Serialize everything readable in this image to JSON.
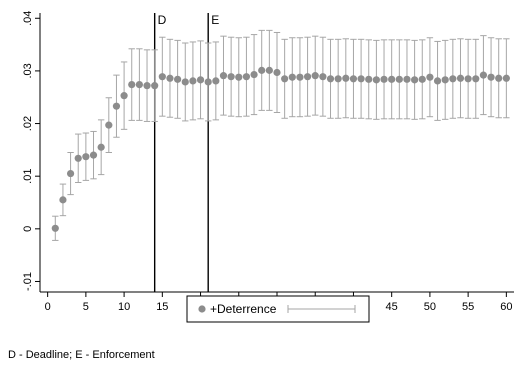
{
  "chart_data": {
    "type": "scatter",
    "x": [
      1,
      2,
      3,
      4,
      5,
      6,
      7,
      8,
      9,
      10,
      11,
      12,
      13,
      14,
      15,
      16,
      17,
      18,
      19,
      20,
      21,
      22,
      23,
      24,
      25,
      26,
      27,
      28,
      29,
      30,
      31,
      32,
      33,
      34,
      35,
      36,
      37,
      38,
      39,
      40,
      41,
      42,
      43,
      44,
      45,
      46,
      47,
      48,
      49,
      50,
      51,
      52,
      53,
      54,
      55,
      56,
      57,
      58,
      59,
      60
    ],
    "series": [
      {
        "name": "+Deterrence",
        "values": [
          0.0001,
          0.0055,
          0.0105,
          0.0134,
          0.0137,
          0.014,
          0.0155,
          0.0197,
          0.0233,
          0.0253,
          0.0274,
          0.0274,
          0.0272,
          0.0272,
          0.0289,
          0.0286,
          0.0284,
          0.0279,
          0.0281,
          0.0283,
          0.0279,
          0.0281,
          0.0291,
          0.0289,
          0.0288,
          0.0289,
          0.0293,
          0.0301,
          0.0301,
          0.0297,
          0.0285,
          0.0288,
          0.0288,
          0.0289,
          0.0291,
          0.0289,
          0.0285,
          0.0285,
          0.0286,
          0.0285,
          0.0285,
          0.0284,
          0.0283,
          0.0284,
          0.0284,
          0.0284,
          0.0284,
          0.0283,
          0.0284,
          0.0288,
          0.0281,
          0.0283,
          0.0285,
          0.0286,
          0.0285,
          0.0285,
          0.0292,
          0.0288,
          0.0286,
          0.0286
        ],
        "lower": [
          -0.0022,
          0.0025,
          0.0065,
          0.0088,
          0.0092,
          0.0095,
          0.0103,
          0.0145,
          0.0174,
          0.0189,
          0.0206,
          0.0206,
          0.0204,
          0.0204,
          0.0214,
          0.0212,
          0.021,
          0.0205,
          0.0207,
          0.0209,
          0.0205,
          0.0207,
          0.0216,
          0.0214,
          0.0213,
          0.0214,
          0.0217,
          0.0225,
          0.0225,
          0.0221,
          0.021,
          0.0213,
          0.0213,
          0.0214,
          0.0216,
          0.0214,
          0.021,
          0.021,
          0.0211,
          0.021,
          0.021,
          0.0209,
          0.0208,
          0.0209,
          0.0209,
          0.0209,
          0.0209,
          0.0208,
          0.0209,
          0.0213,
          0.0206,
          0.0208,
          0.021,
          0.0211,
          0.021,
          0.021,
          0.0217,
          0.0213,
          0.0211,
          0.0211
        ],
        "upper": [
          0.0024,
          0.0085,
          0.0145,
          0.018,
          0.0182,
          0.0185,
          0.0207,
          0.0249,
          0.0292,
          0.0317,
          0.0342,
          0.0342,
          0.034,
          0.034,
          0.0364,
          0.036,
          0.0358,
          0.0353,
          0.0355,
          0.0357,
          0.0353,
          0.0355,
          0.0366,
          0.0364,
          0.0363,
          0.0364,
          0.0369,
          0.0377,
          0.0377,
          0.0373,
          0.036,
          0.0363,
          0.0363,
          0.0364,
          0.0366,
          0.0364,
          0.036,
          0.036,
          0.0361,
          0.036,
          0.036,
          0.0359,
          0.0358,
          0.0359,
          0.0359,
          0.0359,
          0.0359,
          0.0358,
          0.0359,
          0.0363,
          0.0356,
          0.0358,
          0.036,
          0.0361,
          0.036,
          0.036,
          0.0367,
          0.0363,
          0.0361,
          0.0361
        ]
      }
    ],
    "xticks": [
      0,
      5,
      10,
      15,
      20,
      25,
      30,
      35,
      40,
      45,
      50,
      55,
      60
    ],
    "yticks": [
      -0.01,
      0,
      0.01,
      0.02,
      0.03,
      0.04
    ],
    "ytick_labels": [
      "-.01",
      "0",
      ".01",
      ".02",
      ".03",
      ".04"
    ],
    "xlim": [
      -1,
      61
    ],
    "ylim": [
      -0.012,
      0.041
    ],
    "grid": false,
    "vlines": [
      {
        "x": 14,
        "label": "D"
      },
      {
        "x": 21,
        "label": "E"
      }
    ],
    "legend": {
      "placement": "bottom",
      "marker_label": "+Deterrence"
    },
    "colors": {
      "marker": "#8c8c8c",
      "errorbar": "#a6a6a6",
      "vline": "#000000"
    },
    "note": "D - Deadline; E - Enforcement"
  }
}
